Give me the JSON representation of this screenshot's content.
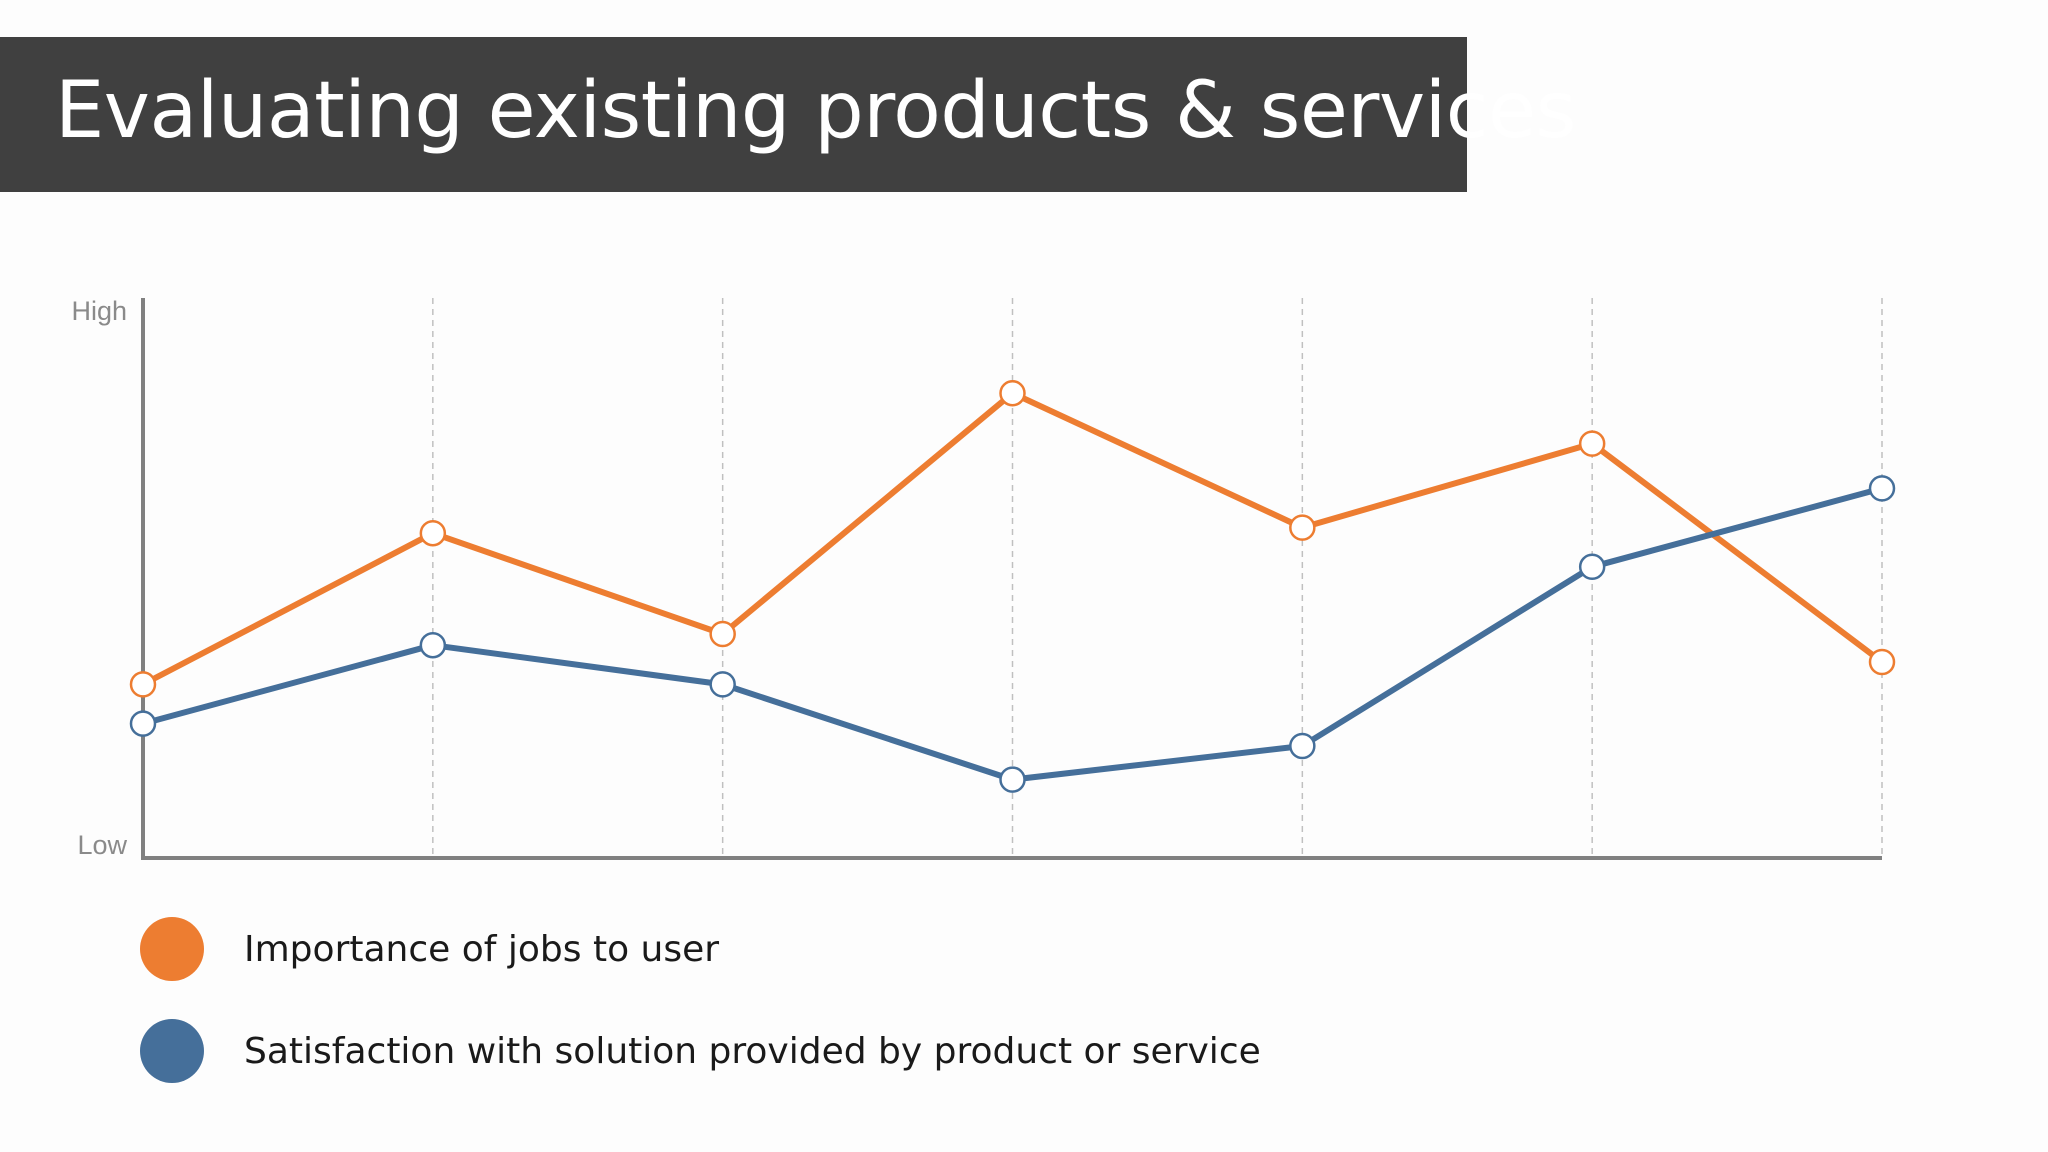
{
  "slide": {
    "title": "Evaluating existing products & services"
  },
  "colors": {
    "importance": "#ed7d31",
    "satisfaction": "#456f9a",
    "axis": "#808080",
    "grid": "#c0c0c0",
    "banner": "#404040"
  },
  "chart_data": {
    "type": "line",
    "x": [
      1,
      2,
      3,
      4,
      5,
      6,
      7
    ],
    "ylim": [
      0,
      10
    ],
    "y_tick_labels": {
      "high": "High",
      "low": "Low"
    },
    "grid": "vertical dashed",
    "legend_placement": "bottom-left",
    "series": [
      {
        "name": "Importance of jobs to user",
        "color": "#ed7d31",
        "values": [
          3.1,
          5.8,
          4.0,
          8.3,
          5.9,
          7.4,
          3.5
        ]
      },
      {
        "name": "Satisfaction with solution provided by product or service",
        "color": "#456f9a",
        "values": [
          2.4,
          3.8,
          3.1,
          1.4,
          2.0,
          5.2,
          6.6
        ]
      }
    ]
  }
}
